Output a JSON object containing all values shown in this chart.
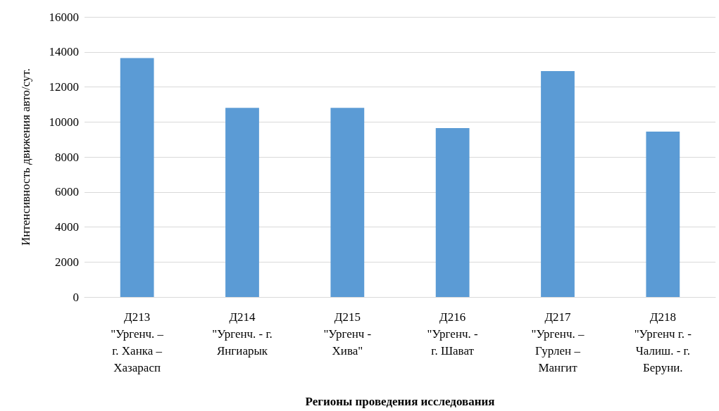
{
  "chart_data": {
    "type": "bar",
    "xlabel": "Регионы проведения исследования",
    "ylabel": "Интенсивность движения авто/сут.",
    "categories": [
      "Д213\n\"Ургенч. –\nг. Ханка –\nХазарасп",
      "Д214\n\"Ургенч. - г.\nЯнгиарык",
      "Д215\n\"Ургенч -\nХива\"",
      "Д216\n\"Ургенч. -\nг. Шават",
      "Д217\n\"Ургенч. –\nГурлен –\nМангит",
      "Д218\n\"Ургенч г. -\nЧалиш. - г.\nБеруни."
    ],
    "values": [
      13650,
      10800,
      10800,
      9650,
      12900,
      9450
    ],
    "color": "#5b9bd5",
    "ylim": [
      0,
      16000
    ],
    "yticks": [
      0,
      2000,
      4000,
      6000,
      8000,
      10000,
      12000,
      14000,
      16000
    ],
    "grid": "y"
  }
}
